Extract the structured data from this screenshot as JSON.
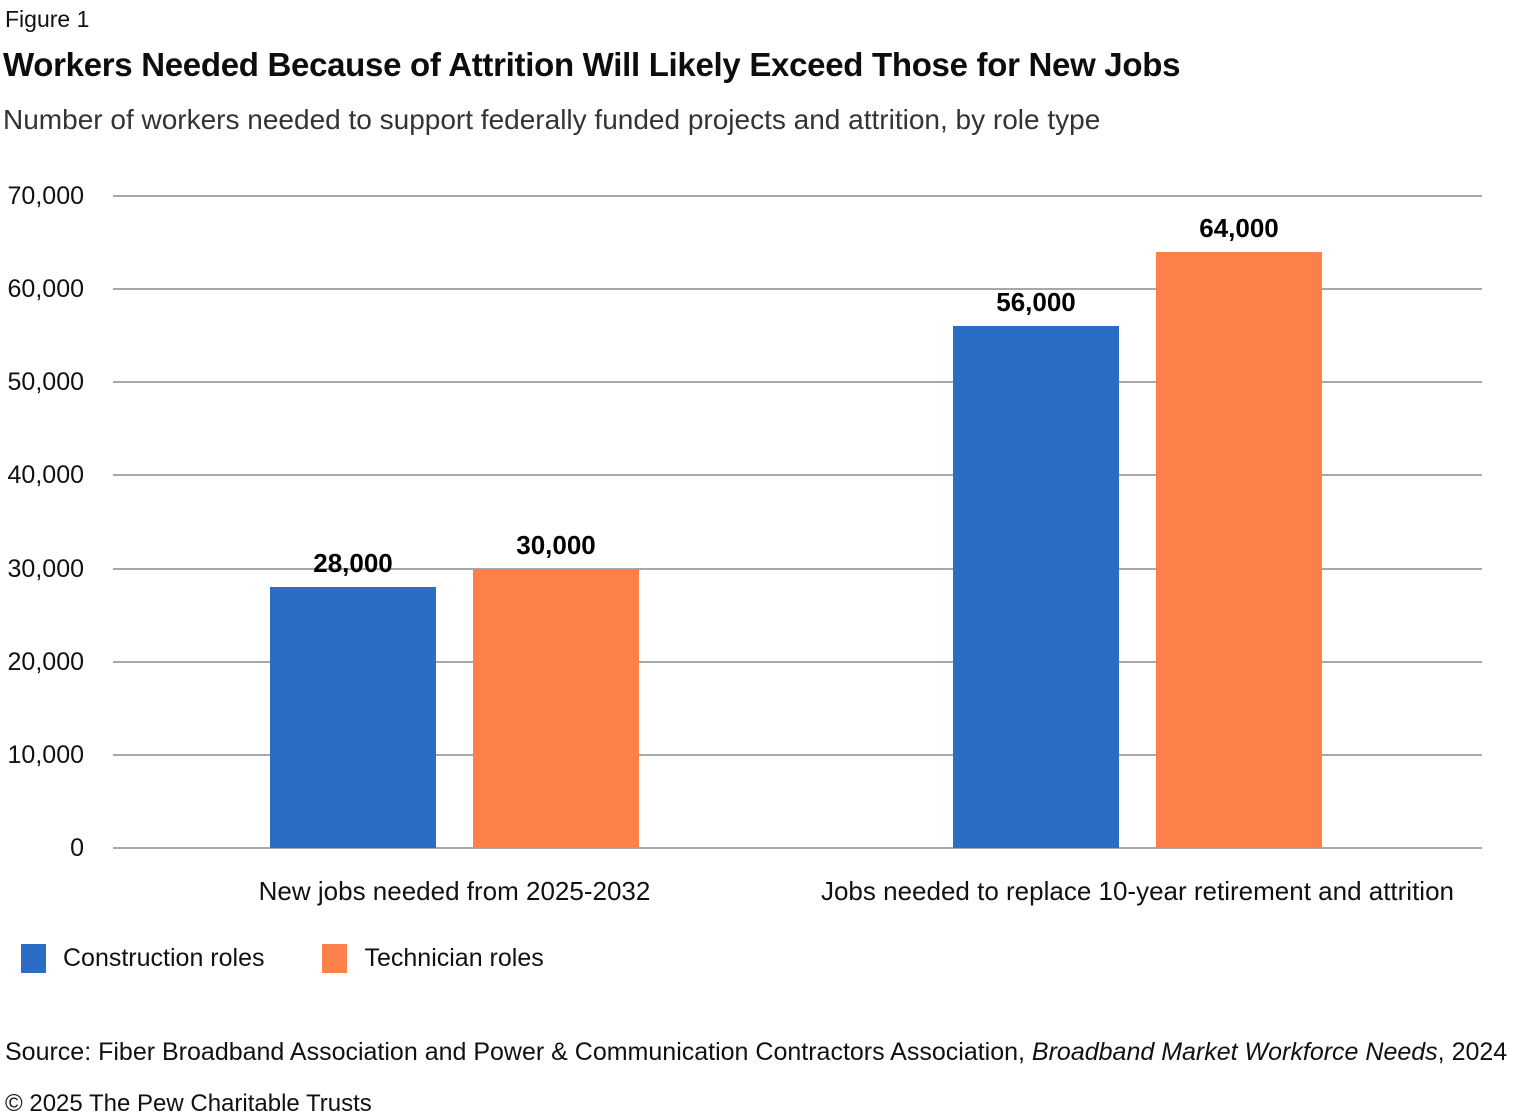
{
  "figure_label": "Figure 1",
  "header": {
    "title": "Workers Needed Because of Attrition Will Likely Exceed Those for New Jobs",
    "subtitle": "Number of workers needed to support federally funded projects and attrition, by role type"
  },
  "chart_data": {
    "type": "bar",
    "title": "Workers Needed Because of Attrition Will Likely Exceed Those for New Jobs",
    "subtitle": "Number of workers needed to support federally funded projects and attrition, by role type",
    "categories": [
      "New jobs needed from 2025-2032",
      "Jobs needed to replace 10-year retirement and attrition"
    ],
    "series": [
      {
        "name": "Construction roles",
        "color": "#2B6CC4",
        "values": [
          28000,
          56000
        ],
        "value_labels": [
          "28,000",
          "56,000"
        ]
      },
      {
        "name": "Technician roles",
        "color": "#FC8049",
        "values": [
          30000,
          64000
        ],
        "value_labels": [
          "30,000",
          "64,000"
        ]
      }
    ],
    "ylim": [
      0,
      70000
    ],
    "ytick_interval": 10000,
    "ytick_labels": [
      "0",
      "10,000",
      "20,000",
      "30,000",
      "40,000",
      "50,000",
      "60,000",
      "70,000"
    ],
    "grid": true,
    "gridline_color": "#A8A8A8",
    "legend_position": "bottom-left"
  },
  "legend": {
    "items": [
      {
        "label": "Construction roles",
        "color": "#2B6CC4"
      },
      {
        "label": "Technician roles",
        "color": "#FC8049"
      }
    ]
  },
  "footer": {
    "source_prefix": "Source: Fiber Broadband Association and Power & Communication Contractors Association, ",
    "source_italic": "Broadband Market Workforce Needs",
    "source_suffix": ", 2024",
    "copyright": "© 2025 The Pew Charitable Trusts"
  }
}
